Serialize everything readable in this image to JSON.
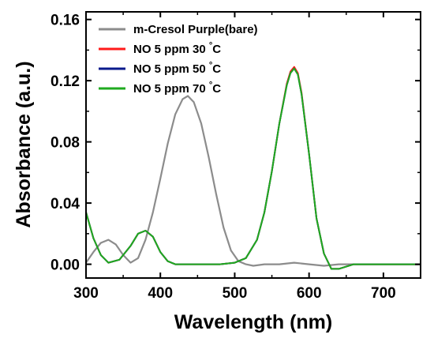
{
  "chart_data": {
    "type": "line",
    "xlabel": "Wavelength (nm)",
    "ylabel": "Absorbance (a.u.)",
    "xlim": [
      300,
      750
    ],
    "ylim": [
      -0.009,
      0.165
    ],
    "xticks": [
      300,
      400,
      500,
      600,
      700
    ],
    "yticks": [
      0.0,
      0.04,
      0.08,
      0.12,
      0.16
    ],
    "ytick_labels": [
      "0.00",
      "0.04",
      "0.08",
      "0.12",
      "0.16"
    ],
    "grid": false,
    "legend_position": "top-left",
    "series": [
      {
        "name": "m-Cresol Purple(bare)",
        "color": "#8c8c8c",
        "x": [
          300,
          310,
          320,
          330,
          340,
          350,
          360,
          370,
          380,
          390,
          400,
          410,
          420,
          430,
          437,
          445,
          455,
          465,
          475,
          485,
          495,
          505,
          515,
          525,
          540,
          560,
          580,
          600,
          620,
          640,
          660,
          680,
          700,
          720,
          740,
          750
        ],
        "y": [
          0.001,
          0.008,
          0.014,
          0.016,
          0.013,
          0.006,
          0.001,
          0.004,
          0.016,
          0.034,
          0.056,
          0.079,
          0.098,
          0.108,
          0.11,
          0.106,
          0.092,
          0.07,
          0.046,
          0.024,
          0.009,
          0.002,
          0.0,
          -0.001,
          0.0,
          0.0,
          0.001,
          0.0,
          -0.001,
          0.0,
          0.0,
          0.0,
          0.0,
          0.0,
          0.0,
          0.0
        ]
      },
      {
        "name": "NO 5 ppm 30 °C",
        "color": "#ff1a1a",
        "x": [
          300,
          310,
          320,
          330,
          345,
          360,
          370,
          380,
          390,
          400,
          410,
          420,
          440,
          460,
          480,
          500,
          515,
          530,
          540,
          550,
          560,
          570,
          575,
          580,
          585,
          590,
          600,
          610,
          620,
          630,
          640,
          660,
          680,
          700,
          720,
          750
        ],
        "y": [
          0.034,
          0.017,
          0.006,
          0.001,
          0.003,
          0.012,
          0.02,
          0.022,
          0.018,
          0.008,
          0.002,
          0.0,
          0.0,
          0.0,
          0.0,
          0.001,
          0.004,
          0.016,
          0.034,
          0.061,
          0.092,
          0.118,
          0.126,
          0.129,
          0.125,
          0.112,
          0.072,
          0.03,
          0.007,
          -0.003,
          -0.003,
          0.0,
          0.0,
          0.0,
          0.0,
          0.0
        ]
      },
      {
        "name": "NO 5 ppm 50 °C",
        "color": "#0a1a8c",
        "x": [
          300,
          310,
          320,
          330,
          345,
          360,
          370,
          380,
          390,
          400,
          410,
          420,
          440,
          460,
          480,
          500,
          515,
          530,
          540,
          550,
          560,
          570,
          575,
          580,
          585,
          590,
          600,
          610,
          620,
          630,
          640,
          660,
          680,
          700,
          720,
          750
        ],
        "y": [
          0.034,
          0.017,
          0.006,
          0.001,
          0.003,
          0.012,
          0.02,
          0.022,
          0.018,
          0.008,
          0.002,
          0.0,
          0.0,
          0.0,
          0.0,
          0.001,
          0.004,
          0.016,
          0.034,
          0.061,
          0.092,
          0.117,
          0.125,
          0.128,
          0.124,
          0.111,
          0.072,
          0.03,
          0.007,
          -0.003,
          -0.003,
          0.0,
          0.0,
          0.0,
          0.0,
          0.0
        ]
      },
      {
        "name": "NO 5 ppm 70 °C",
        "color": "#1faa1f",
        "x": [
          300,
          310,
          320,
          330,
          345,
          360,
          370,
          380,
          390,
          400,
          410,
          420,
          440,
          460,
          480,
          500,
          515,
          530,
          540,
          550,
          560,
          570,
          575,
          580,
          585,
          590,
          600,
          610,
          620,
          630,
          640,
          660,
          680,
          700,
          720,
          750
        ],
        "y": [
          0.034,
          0.017,
          0.006,
          0.001,
          0.003,
          0.012,
          0.02,
          0.022,
          0.018,
          0.008,
          0.002,
          0.0,
          0.0,
          0.0,
          0.0,
          0.001,
          0.004,
          0.016,
          0.034,
          0.061,
          0.092,
          0.117,
          0.125,
          0.128,
          0.124,
          0.111,
          0.072,
          0.03,
          0.007,
          -0.003,
          -0.003,
          0.0,
          0.0,
          0.0,
          0.0,
          0.0
        ]
      }
    ]
  }
}
